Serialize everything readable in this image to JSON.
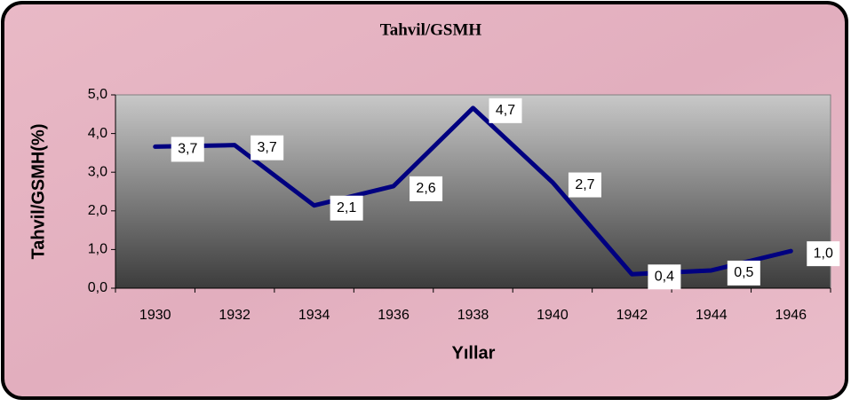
{
  "chart_data": {
    "type": "line",
    "title": "Tahvil/GSMH",
    "x_label": "Yıllar",
    "y_label": "Tahvil/GSMH(%)",
    "categories": [
      "1930",
      "1932",
      "1934",
      "1936",
      "1938",
      "1940",
      "1942",
      "1944",
      "1946"
    ],
    "series": [
      {
        "name": "Tahvil/GSMH",
        "color": "#000080",
        "values": [
          3.66,
          3.7,
          2.14,
          2.64,
          4.66,
          2.74,
          0.36,
          0.46,
          0.96
        ],
        "value_labels": [
          "3,7",
          "3,7",
          "2,1",
          "2,6",
          "4,7",
          "2,7",
          "0,4",
          "0,5",
          "1,0"
        ]
      }
    ],
    "ylim": [
      0,
      5
    ],
    "yticks": [
      {
        "value": 0,
        "label": "0,0"
      },
      {
        "value": 1,
        "label": "1,0"
      },
      {
        "value": 2,
        "label": "2,0"
      },
      {
        "value": 3,
        "label": "3,0"
      },
      {
        "value": 4,
        "label": "4,0"
      },
      {
        "value": 5,
        "label": "5,0"
      }
    ]
  }
}
